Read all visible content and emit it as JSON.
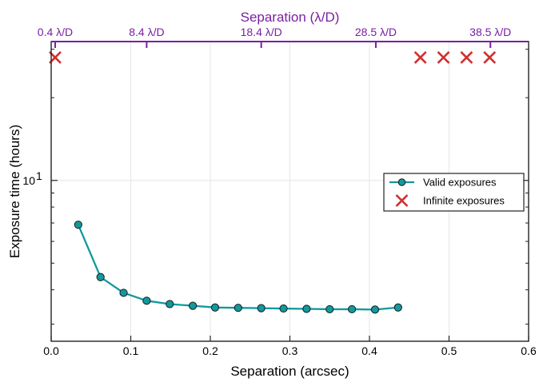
{
  "chart_data": {
    "type": "scatter",
    "x_axis": {
      "label": "Separation (arcsec)",
      "range": [
        0.0,
        0.6
      ],
      "ticks": [
        0.0,
        0.1,
        0.2,
        0.3,
        0.4,
        0.5,
        0.6
      ],
      "tick_labels": [
        "0.0",
        "0.1",
        "0.2",
        "0.3",
        "0.4",
        "0.5",
        "0.6"
      ]
    },
    "y_axis": {
      "label": "Exposure time (hours)",
      "scale": "log",
      "range": [
        2.6,
        32
      ],
      "major_ticks": [
        10
      ],
      "major_tick_labels": [
        "10"
      ],
      "major_tick_exponent": "1",
      "minor_ticks": [
        3,
        4,
        5,
        6,
        7,
        8,
        9,
        20,
        30
      ]
    },
    "top_axis": {
      "label": "Separation (λ/D)",
      "ticks_arcsec": [
        0.005,
        0.12,
        0.264,
        0.408,
        0.552
      ],
      "tick_labels": [
        "0.4 λ/D",
        "8.4 λ/D",
        "18.4 λ/D",
        "28.5 λ/D",
        "38.5 λ/D"
      ],
      "color": "#7a1fa2"
    },
    "grid": true,
    "legend_position": "right",
    "series": [
      {
        "name": "Valid exposures",
        "style": "line-with-markers",
        "color": "#11999e",
        "x": [
          0.034,
          0.062,
          0.091,
          0.12,
          0.149,
          0.178,
          0.206,
          0.235,
          0.264,
          0.292,
          0.321,
          0.35,
          0.378,
          0.407,
          0.436
        ],
        "y": [
          6.9,
          4.45,
          3.9,
          3.65,
          3.55,
          3.5,
          3.45,
          3.44,
          3.43,
          3.42,
          3.41,
          3.4,
          3.4,
          3.39,
          3.45
        ]
      },
      {
        "name": "Infinite exposures",
        "style": "x-markers",
        "color": "#d03030",
        "x": [
          0.005,
          0.464,
          0.493,
          0.522,
          0.551
        ],
        "y": [
          28,
          28,
          28,
          28,
          28
        ]
      }
    ]
  }
}
